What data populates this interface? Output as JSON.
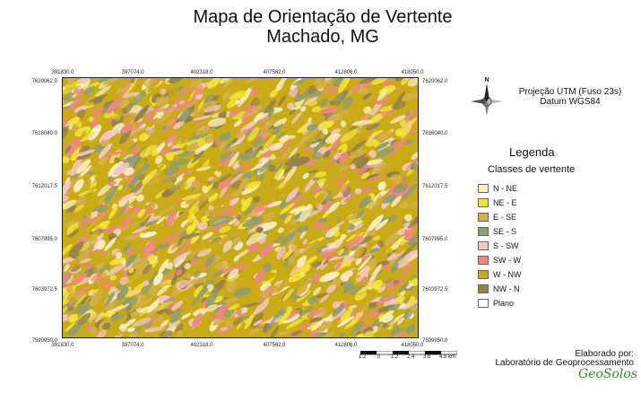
{
  "title_line1": "Mapa de Orientação de Vertente",
  "title_line2": "Machado, MG",
  "projection_line1": "Projeção UTM (Fuso 23s)",
  "projection_line2": "Datum WGS84",
  "north_label": "N",
  "legend": {
    "title": "Legenda",
    "subtitle": "Classes de vertente",
    "items": [
      {
        "label": "N - NE",
        "color": "#f8efc0"
      },
      {
        "label": "NE - E",
        "color": "#f2e338"
      },
      {
        "label": "E - SE",
        "color": "#d4b14c"
      },
      {
        "label": "SE - S",
        "color": "#8f9e72"
      },
      {
        "label": "S - SW",
        "color": "#f5c6c3"
      },
      {
        "label": "SW - W",
        "color": "#ee8780"
      },
      {
        "label": "W - NW",
        "color": "#c9aa18"
      },
      {
        "label": "NW - N",
        "color": "#94804a"
      },
      {
        "label": "Plano",
        "color": "#ffffff"
      }
    ]
  },
  "x_ticks": [
    "391830.0",
    "397074.0",
    "402318.0",
    "407562.0",
    "412806.0",
    "418050.0"
  ],
  "y_ticks": [
    "7620062.0",
    "7616040.0",
    "7612017.5",
    "7607995.0",
    "7603972.5",
    "7599950.0"
  ],
  "scale_ticks": [
    "1.2",
    "0",
    "1.2",
    "2.4",
    "3.6",
    "4.8 km"
  ],
  "credit_line1": "Elaborado por:",
  "credit_line2": "Laboratório de Geoprocessamento",
  "logo_text": "GeoSolos"
}
